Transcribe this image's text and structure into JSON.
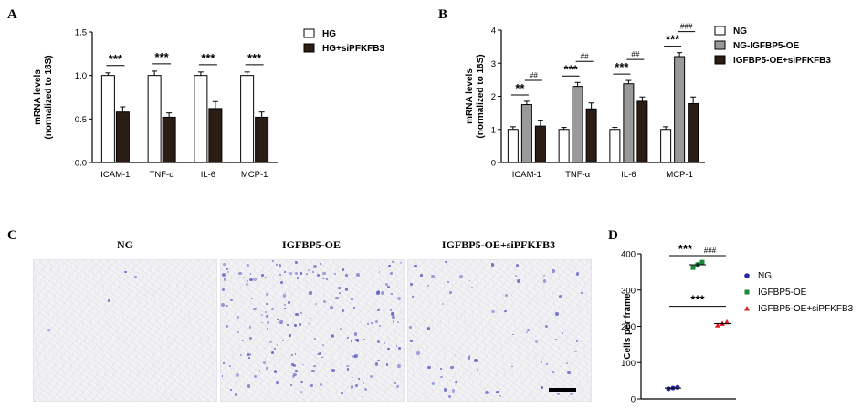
{
  "panel_labels": {
    "a": "A",
    "b": "B",
    "c": "C",
    "d": "D"
  },
  "panel_c": {
    "titles": [
      "NG",
      "IGFBP5-OE",
      "IGFBP5-OE+siPFKFB3"
    ],
    "cell_density": [
      0.02,
      0.85,
      0.3
    ]
  },
  "chart_data": [
    {
      "panel": "A",
      "type": "bar",
      "ylabel_lines": [
        "mRNA levels",
        "(normalized to 18S)"
      ],
      "ylim": [
        0,
        1.5
      ],
      "yticks": [
        "0.0",
        "0.5",
        "1.0",
        "1.5"
      ],
      "categories": [
        "ICAM-1",
        "TNF-α",
        "IL-6",
        "MCP-1"
      ],
      "series": [
        {
          "name": "HG",
          "values": [
            1.0,
            1.0,
            1.0,
            1.0
          ],
          "errors": [
            0.03,
            0.05,
            0.04,
            0.04
          ],
          "fill": "#ffffff"
        },
        {
          "name": "HG+siPFKFB3",
          "values": [
            0.58,
            0.52,
            0.62,
            0.52
          ],
          "errors": [
            0.06,
            0.05,
            0.08,
            0.06
          ],
          "fill": "#2b1c14"
        }
      ],
      "significance": [
        {
          "category": 0,
          "label": "***"
        },
        {
          "category": 1,
          "label": "***"
        },
        {
          "category": 2,
          "label": "***"
        },
        {
          "category": 3,
          "label": "***"
        }
      ],
      "legend_position": "top-right"
    },
    {
      "panel": "B",
      "type": "bar",
      "ylabel_lines": [
        "mRNA levels",
        "(normalized to 18S)"
      ],
      "ylim": [
        0,
        4
      ],
      "yticks": [
        "0",
        "1",
        "2",
        "3",
        "4"
      ],
      "categories": [
        "ICAM-1",
        "TNF-α",
        "IL-6",
        "MCP-1"
      ],
      "series": [
        {
          "name": "NG",
          "values": [
            1.0,
            1.0,
            1.0,
            1.0
          ],
          "errors": [
            0.08,
            0.06,
            0.06,
            0.08
          ],
          "fill": "#ffffff"
        },
        {
          "name": "NG-IGFBP5-OE",
          "values": [
            1.75,
            2.3,
            2.38,
            3.2
          ],
          "errors": [
            0.1,
            0.12,
            0.1,
            0.12
          ],
          "fill": "#9a9a9a"
        },
        {
          "name": "IGFBP5-OE+siPFKFB3",
          "values": [
            1.1,
            1.62,
            1.85,
            1.78
          ],
          "errors": [
            0.16,
            0.18,
            0.13,
            0.2
          ],
          "fill": "#2b1c14"
        }
      ],
      "significance": [
        {
          "category": 0,
          "label": "**",
          "label2": "##"
        },
        {
          "category": 1,
          "label": "***",
          "label2": "##"
        },
        {
          "category": 2,
          "label": "***",
          "label2": "##"
        },
        {
          "category": 3,
          "label": "***",
          "label2": "###"
        }
      ],
      "legend_position": "top-right"
    },
    {
      "panel": "D",
      "type": "scatter",
      "ylabel": "Cells per frame",
      "ylim": [
        0,
        400
      ],
      "yticks": [
        "0",
        "100",
        "200",
        "300",
        "400"
      ],
      "series": [
        {
          "name": "NG",
          "marker": "circle",
          "color": "#2a2aa0",
          "points": [
            28,
            30,
            32
          ]
        },
        {
          "name": "IGFBP5-OE",
          "marker": "square",
          "color": "#1a8a3a",
          "points": [
            362,
            370,
            377
          ]
        },
        {
          "name": "IGFBP5-OE+siPFKFB3",
          "marker": "triangle",
          "color": "#e02020",
          "points": [
            203,
            208,
            212
          ]
        }
      ],
      "significance": [
        {
          "from": 0,
          "to": 1,
          "label": "***"
        },
        {
          "from": 1,
          "to": 2,
          "label": "###"
        },
        {
          "from": 0,
          "to": 2,
          "label": "***"
        }
      ],
      "legend_position": "right"
    }
  ]
}
